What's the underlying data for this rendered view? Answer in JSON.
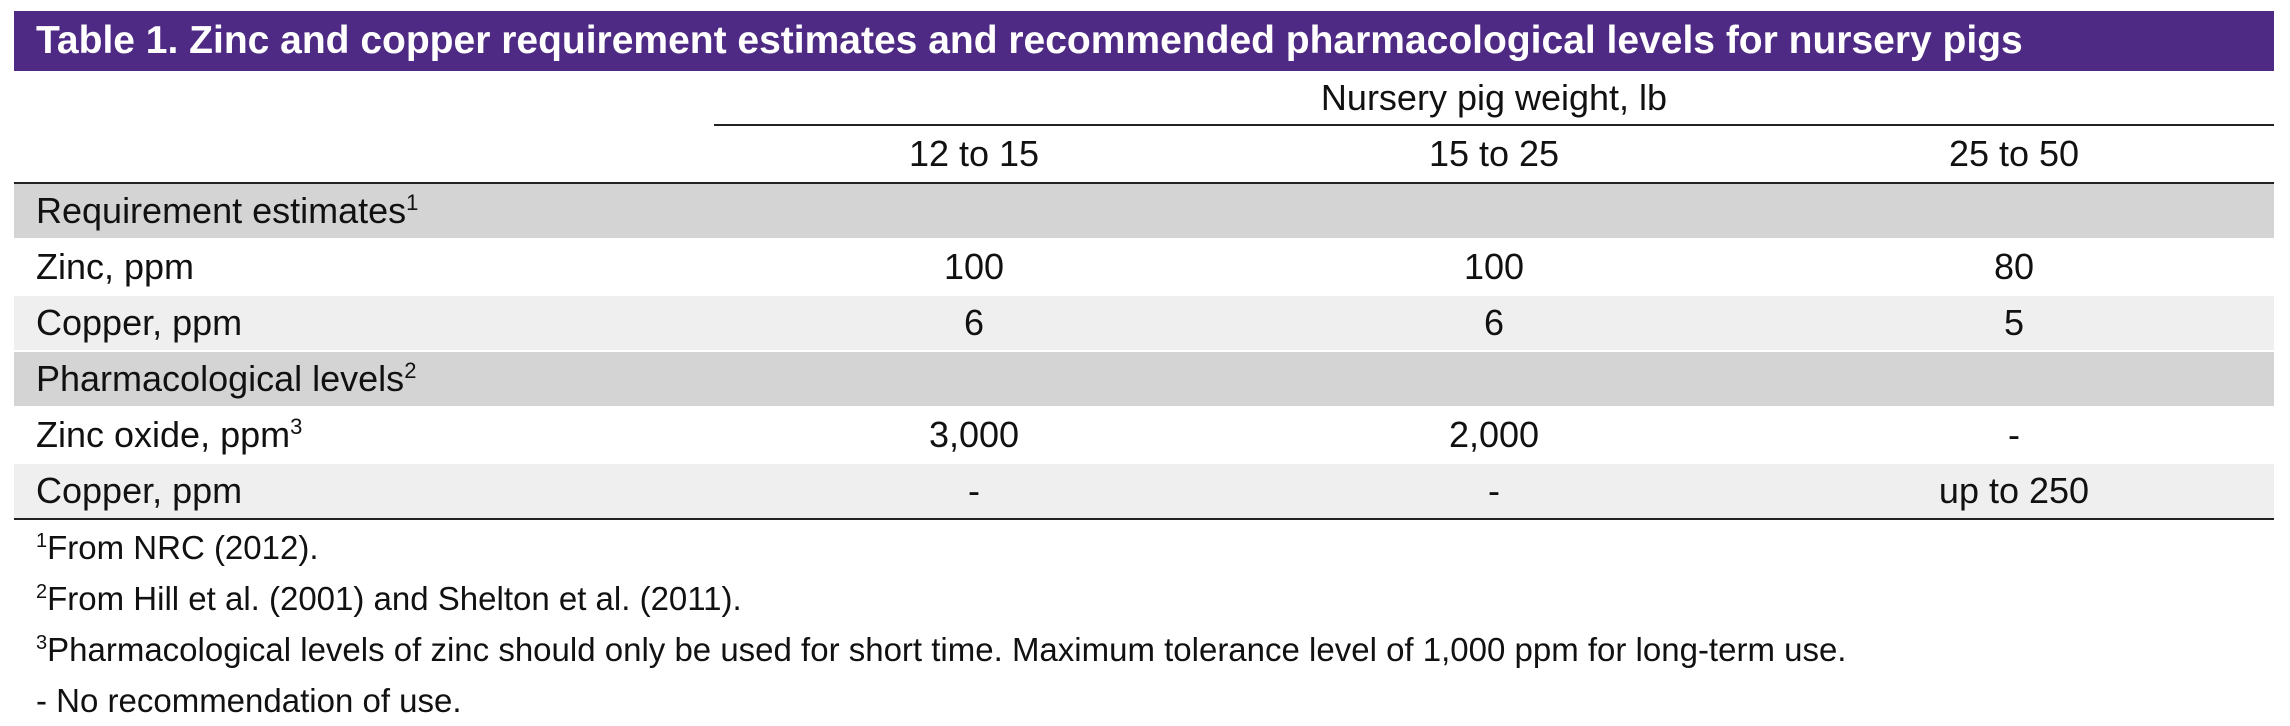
{
  "table": {
    "title": "Table 1. Zinc and copper requirement estimates and recommended pharmacological levels for nursery pigs",
    "group_header": "Nursery pig weight, lb",
    "columns": [
      "12 to 15",
      "15 to 25",
      "25 to 50"
    ],
    "sections": [
      {
        "label": "Requirement estimates",
        "sup": "1",
        "rows": [
          {
            "label": "Zinc, ppm",
            "sup": "",
            "values": [
              "100",
              "100",
              "80"
            ]
          },
          {
            "label": "Copper, ppm",
            "sup": "",
            "values": [
              "6",
              "6",
              "5"
            ]
          }
        ]
      },
      {
        "label": "Pharmacological levels",
        "sup": "2",
        "rows": [
          {
            "label": "Zinc oxide, ppm",
            "sup": "3",
            "values": [
              "3,000",
              "2,000",
              "-"
            ]
          },
          {
            "label": "Copper, ppm",
            "sup": "",
            "values": [
              "-",
              "-",
              "up to 250"
            ]
          }
        ]
      }
    ],
    "footnotes": [
      {
        "mark": "1",
        "text": "From NRC (2012)."
      },
      {
        "mark": "2",
        "text": "From Hill et al. (2001) and Shelton et al. (2011)."
      },
      {
        "mark": "3",
        "text": "Pharmacological levels of zinc should only be used for short time. Maximum tolerance level of 1,000 ppm for long-term use."
      },
      {
        "mark": "",
        "text": "- No recommendation of use."
      }
    ]
  },
  "colors": {
    "title_bar": "#4e2a84",
    "section_row": "#d4d4d4",
    "alt_row": "#efefef"
  }
}
